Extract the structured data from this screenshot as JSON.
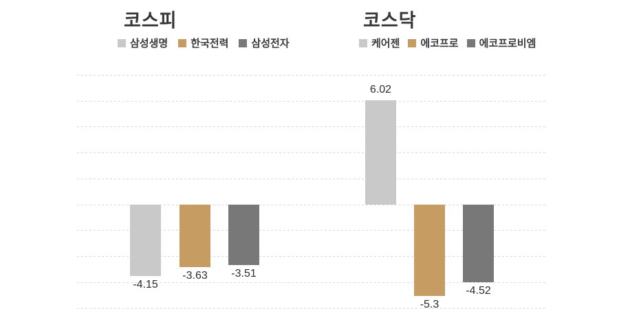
{
  "background": "#ffffff",
  "title_color": "#363636",
  "grid_color": "#d9d9d9",
  "value_label_color": "#2d2d2d",
  "chart_data": [
    {
      "type": "bar",
      "title": "코스피",
      "categories": [
        "삼성생명",
        "한국전력",
        "삼성전자"
      ],
      "values": [
        -4.15,
        -3.63,
        -3.51
      ],
      "value_labels": [
        "-4.15",
        "-3.63",
        "-3.51"
      ],
      "colors": [
        "#c9c9c9",
        "#c69c63",
        "#787878"
      ],
      "ylabel": "",
      "xlabel": "",
      "ylim": [
        -6,
        7.5
      ],
      "grid_interval": 1.5,
      "grid": "horizontal dashed, no tick labels, baseline at 0",
      "legend_position": "top",
      "legend": [
        {
          "label": "삼성생명",
          "color": "#c9c9c9"
        },
        {
          "label": "한국전력",
          "color": "#c69c63"
        },
        {
          "label": "삼성전자",
          "color": "#787878"
        }
      ]
    },
    {
      "type": "bar",
      "title": "코스닥",
      "categories": [
        "케어젠",
        "에코프로",
        "에코프로비엠"
      ],
      "values": [
        6.02,
        -5.3,
        -4.52
      ],
      "value_labels": [
        "6.02",
        "-5.3",
        "-4.52"
      ],
      "colors": [
        "#c9c9c9",
        "#c69c63",
        "#787878"
      ],
      "ylabel": "",
      "xlabel": "",
      "ylim": [
        -6,
        7.5
      ],
      "grid_interval": 1.5,
      "grid": "horizontal dashed, no tick labels, baseline at 0",
      "legend_position": "top",
      "legend": [
        {
          "label": "케어젠",
          "color": "#c9c9c9"
        },
        {
          "label": "에코프로",
          "color": "#c69c63"
        },
        {
          "label": "에코프로비엠",
          "color": "#787878"
        }
      ]
    }
  ]
}
